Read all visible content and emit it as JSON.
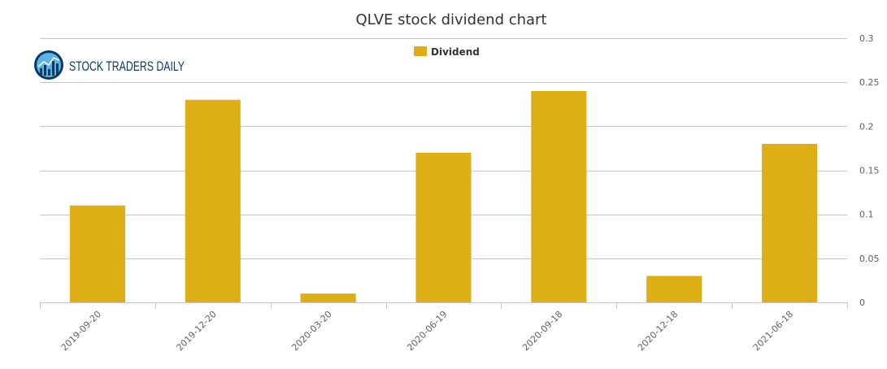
{
  "brand": {
    "name": "STOCK TRADERS DAILY"
  },
  "colors": {
    "bar": "#deae16",
    "grid": "#c8c8c8",
    "axis_text": "#606060",
    "title": "#333333",
    "logo_dark": "#0b3a5c",
    "logo_light": "#5ab4e6"
  },
  "chart_data": {
    "type": "bar",
    "title": "QLVE stock dividend chart",
    "xlabel": "",
    "ylabel": "",
    "categories": [
      "2019-09-20",
      "2019-12-20",
      "2020-03-20",
      "2020-06-19",
      "2020-09-18",
      "2020-12-18",
      "2021-06-18"
    ],
    "series": [
      {
        "name": "Dividend",
        "values": [
          0.11,
          0.23,
          0.01,
          0.17,
          0.24,
          0.03,
          0.18
        ]
      }
    ],
    "ylim": [
      0,
      0.3
    ],
    "yticks": [
      0,
      0.05,
      0.1,
      0.15,
      0.2,
      0.25,
      0.3
    ],
    "ytick_labels": [
      "0",
      "0.05",
      "0.1",
      "0.15",
      "0.2",
      "0.25",
      "0.3"
    ],
    "grid": true,
    "legend_position": "top-center",
    "y_axis_side": "right"
  }
}
